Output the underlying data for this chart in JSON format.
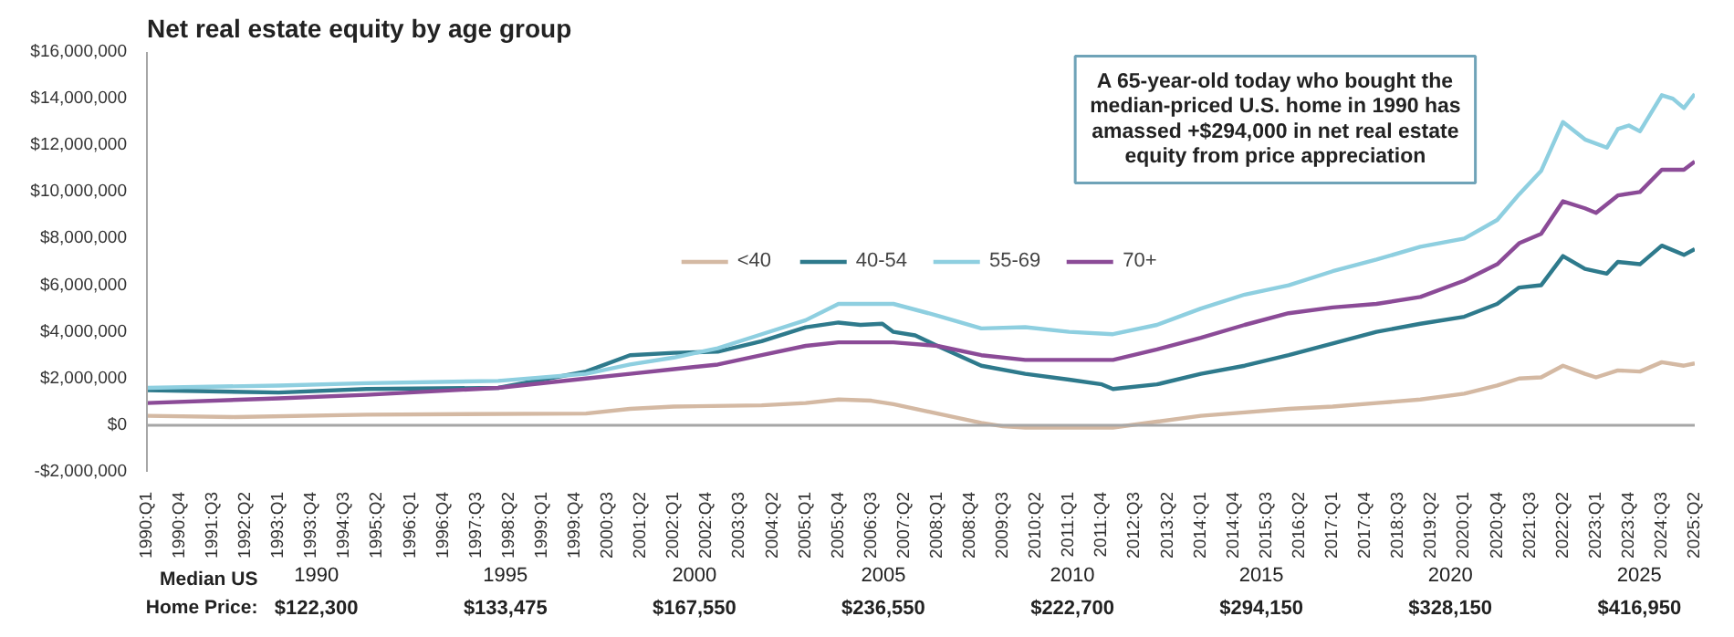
{
  "chart_data": {
    "type": "line",
    "title": "Net real estate equity by age group",
    "xlim": [
      "1990-01",
      "2025-04"
    ],
    "ylim": [
      -2000000,
      16000000
    ],
    "xticks": [
      {
        "value": "1990-01",
        "label": "1990:Q1"
      },
      {
        "value": "1990-10",
        "label": "1990:Q4"
      },
      {
        "value": "1991-07",
        "label": "1991:Q3"
      },
      {
        "value": "1992-04",
        "label": "1992:Q2"
      },
      {
        "value": "1993-01",
        "label": "1993:Q1"
      },
      {
        "value": "1993-10",
        "label": "1993:Q4"
      },
      {
        "value": "1994-07",
        "label": "1994:Q3"
      },
      {
        "value": "1995-04",
        "label": "1995:Q2"
      },
      {
        "value": "1996-01",
        "label": "1996:Q1"
      },
      {
        "value": "1996-10",
        "label": "1996:Q4"
      },
      {
        "value": "1997-07",
        "label": "1997:Q3"
      },
      {
        "value": "1998-04",
        "label": "1998:Q2"
      },
      {
        "value": "1999-01",
        "label": "1999:Q1"
      },
      {
        "value": "1999-10",
        "label": "1999:Q4"
      },
      {
        "value": "2000-07",
        "label": "2000:Q3"
      },
      {
        "value": "2001-04",
        "label": "2001:Q2"
      },
      {
        "value": "2002-01",
        "label": "2002:Q1"
      },
      {
        "value": "2002-10",
        "label": "2002:Q4"
      },
      {
        "value": "2003-07",
        "label": "2003:Q3"
      },
      {
        "value": "2004-04",
        "label": "2004:Q2"
      },
      {
        "value": "2005-01",
        "label": "2005:Q1"
      },
      {
        "value": "2005-10",
        "label": "2005:Q4"
      },
      {
        "value": "2006-07",
        "label": "2006:Q3"
      },
      {
        "value": "2007-04",
        "label": "2007:Q2"
      },
      {
        "value": "2008-01",
        "label": "2008:Q1"
      },
      {
        "value": "2008-10",
        "label": "2008:Q4"
      },
      {
        "value": "2009-07",
        "label": "2009:Q3"
      },
      {
        "value": "2010-04",
        "label": "2010:Q2"
      },
      {
        "value": "2011-01",
        "label": "2011:Q1"
      },
      {
        "value": "2011-10",
        "label": "2011:Q4"
      },
      {
        "value": "2012-07",
        "label": "2012:Q3"
      },
      {
        "value": "2013-04",
        "label": "2013:Q2"
      },
      {
        "value": "2014-01",
        "label": "2014:Q1"
      },
      {
        "value": "2014-10",
        "label": "2014:Q4"
      },
      {
        "value": "2015-07",
        "label": "2015:Q3"
      },
      {
        "value": "2016-04",
        "label": "2016:Q2"
      },
      {
        "value": "2017-01",
        "label": "2017:Q1"
      },
      {
        "value": "2017-10",
        "label": "2017:Q4"
      },
      {
        "value": "2018-07",
        "label": "2018:Q3"
      },
      {
        "value": "2019-04",
        "label": "2019:Q2"
      },
      {
        "value": "2020-01",
        "label": "2020:Q1"
      },
      {
        "value": "2020-10",
        "label": "2020:Q4"
      },
      {
        "value": "2021-07",
        "label": "2021:Q3"
      },
      {
        "value": "2022-04",
        "label": "2022:Q2"
      },
      {
        "value": "2023-01",
        "label": "2023:Q1"
      },
      {
        "value": "2023-10",
        "label": "2023:Q4"
      },
      {
        "value": "2024-07",
        "label": "2024:Q3"
      },
      {
        "value": "2025-04",
        "label": "2025:Q2"
      }
    ],
    "yticks": [
      {
        "value": -2000000,
        "label": "-$2,000,000"
      },
      {
        "value": 0,
        "label": "$0"
      },
      {
        "value": 2000000,
        "label": "$2,000,000"
      },
      {
        "value": 4000000,
        "label": "$4,000,000"
      },
      {
        "value": 6000000,
        "label": "$6,000,000"
      },
      {
        "value": 8000000,
        "label": "$8,000,000"
      },
      {
        "value": 10000000,
        "label": "$10,000,000"
      },
      {
        "value": 12000000,
        "label": "$12,000,000"
      },
      {
        "value": 14000000,
        "label": "$14,000,000"
      },
      {
        "value": 16000000,
        "label": "$16,000,000"
      }
    ],
    "grid": false,
    "legend": "center",
    "ref_lines": [
      {
        "axis": "y",
        "value": 0,
        "color": "#a6a6a6"
      }
    ],
    "series": [
      {
        "name": "<40",
        "color": "#d4b9a3",
        "x": [
          "1990-01",
          "1992-01",
          "1995-01",
          "2000-01",
          "2001-01",
          "2002-01",
          "2004-01",
          "2005-01",
          "2005-10",
          "2006-07",
          "2007-01",
          "2008-01",
          "2009-01",
          "2009-07",
          "2010-01",
          "2011-01",
          "2012-01",
          "2013-01",
          "2014-01",
          "2015-01",
          "2016-01",
          "2017-01",
          "2018-01",
          "2019-01",
          "2020-01",
          "2020-10",
          "2021-04",
          "2021-10",
          "2022-04",
          "2022-10",
          "2023-01",
          "2023-07",
          "2024-01",
          "2024-07",
          "2025-01",
          "2025-04"
        ],
        "values": [
          400000,
          350000,
          450000,
          500000,
          700000,
          800000,
          850000,
          950000,
          1100000,
          1050000,
          900000,
          500000,
          100000,
          -50000,
          -100000,
          -100000,
          -100000,
          150000,
          400000,
          550000,
          700000,
          800000,
          950000,
          1100000,
          1350000,
          1700000,
          2000000,
          2050000,
          2550000,
          2200000,
          2050000,
          2350000,
          2300000,
          2700000,
          2550000,
          2650000
        ]
      },
      {
        "name": "40-54",
        "color": "#2e7a8c",
        "x": [
          "1990-01",
          "1993-01",
          "1995-01",
          "1998-01",
          "2000-01",
          "2001-01",
          "2002-01",
          "2003-01",
          "2004-01",
          "2005-01",
          "2005-10",
          "2006-04",
          "2006-10",
          "2007-01",
          "2007-07",
          "2008-01",
          "2009-01",
          "2010-01",
          "2011-01",
          "2011-10",
          "2012-01",
          "2013-01",
          "2014-01",
          "2015-01",
          "2016-01",
          "2017-01",
          "2018-01",
          "2019-01",
          "2020-01",
          "2020-10",
          "2021-04",
          "2021-10",
          "2022-04",
          "2022-10",
          "2023-04",
          "2023-07",
          "2024-01",
          "2024-07",
          "2025-01",
          "2025-04"
        ],
        "values": [
          1500000,
          1400000,
          1550000,
          1600000,
          2300000,
          3000000,
          3100000,
          3150000,
          3600000,
          4200000,
          4400000,
          4300000,
          4350000,
          4000000,
          3850000,
          3400000,
          2550000,
          2200000,
          1950000,
          1750000,
          1550000,
          1750000,
          2200000,
          2550000,
          3000000,
          3500000,
          4000000,
          4350000,
          4650000,
          5200000,
          5900000,
          6000000,
          7250000,
          6700000,
          6500000,
          7000000,
          6900000,
          7700000,
          7300000,
          7550000
        ]
      },
      {
        "name": "55-69",
        "color": "#8ecfe0",
        "x": [
          "1990-01",
          "1993-01",
          "1995-01",
          "1998-01",
          "2000-01",
          "2001-01",
          "2002-01",
          "2003-01",
          "2004-01",
          "2005-01",
          "2005-10",
          "2006-07",
          "2007-01",
          "2008-01",
          "2009-01",
          "2010-01",
          "2011-01",
          "2012-01",
          "2013-01",
          "2014-01",
          "2015-01",
          "2016-01",
          "2017-01",
          "2018-01",
          "2019-01",
          "2020-01",
          "2020-10",
          "2021-04",
          "2021-10",
          "2022-04",
          "2022-10",
          "2023-04",
          "2023-07",
          "2023-10",
          "2024-01",
          "2024-07",
          "2024-10",
          "2025-01",
          "2025-04"
        ],
        "values": [
          1600000,
          1700000,
          1800000,
          1900000,
          2200000,
          2600000,
          2900000,
          3300000,
          3900000,
          4500000,
          5200000,
          5200000,
          5200000,
          4700000,
          4150000,
          4200000,
          4000000,
          3900000,
          4300000,
          5000000,
          5600000,
          6000000,
          6600000,
          7100000,
          7650000,
          8000000,
          8800000,
          9900000,
          10900000,
          13000000,
          12250000,
          11900000,
          12700000,
          12850000,
          12600000,
          14150000,
          14000000,
          13600000,
          14200000
        ]
      },
      {
        "name": "70+",
        "color": "#8b4b97",
        "x": [
          "1990-01",
          "1993-01",
          "1995-01",
          "1998-01",
          "2000-01",
          "2001-01",
          "2002-01",
          "2003-01",
          "2004-01",
          "2005-01",
          "2005-10",
          "2007-01",
          "2008-01",
          "2009-01",
          "2010-01",
          "2011-01",
          "2012-01",
          "2013-01",
          "2014-01",
          "2015-01",
          "2016-01",
          "2017-01",
          "2018-01",
          "2019-01",
          "2020-01",
          "2020-10",
          "2021-04",
          "2021-10",
          "2022-04",
          "2022-10",
          "2023-01",
          "2023-07",
          "2024-01",
          "2024-07",
          "2025-01",
          "2025-04"
        ],
        "values": [
          950000,
          1150000,
          1300000,
          1600000,
          2000000,
          2200000,
          2400000,
          2600000,
          3000000,
          3400000,
          3550000,
          3550000,
          3400000,
          3000000,
          2800000,
          2800000,
          2800000,
          3250000,
          3750000,
          4300000,
          4800000,
          5050000,
          5200000,
          5500000,
          6200000,
          6900000,
          7800000,
          8200000,
          9600000,
          9300000,
          9100000,
          9850000,
          10000000,
          10950000,
          10950000,
          11300000
        ]
      }
    ],
    "annotations": [
      "A 65-year-old today who bought the median-priced U.S. home in 1990 has amassed +$294,000 in net real estate equity from price appreciation",
      "Median US Home Price:",
      "1990 $122,300",
      "1995 $133,475",
      "2000 $167,550",
      "2005 $236,550",
      "2010 $222,700",
      "2015 $294,150",
      "2020 $328,150",
      "2025 $416,950"
    ]
  }
}
